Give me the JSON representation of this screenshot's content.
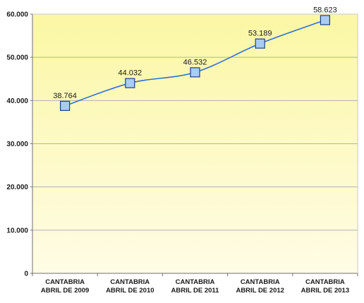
{
  "chart_data": {
    "type": "line",
    "categories": [
      [
        "CANTABRIA",
        "ABRIL DE 2009"
      ],
      [
        "CANTABRIA",
        "ABRIL DE 2010"
      ],
      [
        "CANTABRIA",
        "ABRIL DE 2011"
      ],
      [
        "CANTABRIA",
        "ABRIL DE 2012"
      ],
      [
        "CANTABRIA",
        "ABRIL DE 2013"
      ]
    ],
    "series": [
      {
        "values": [
          38764,
          44032,
          46532,
          53189,
          58623
        ]
      }
    ],
    "data_labels": [
      "38.764",
      "44.032",
      "46.532",
      "53.189",
      "58.623"
    ],
    "yticks": [
      0,
      10000,
      20000,
      30000,
      40000,
      50000,
      60000
    ],
    "ytick_labels": [
      "0",
      "10.000",
      "20.000",
      "30.000",
      "40.000",
      "50.000",
      "60.000"
    ],
    "ylim": [
      0,
      60000
    ],
    "grid": true,
    "legend": "none",
    "line_smoothed": true,
    "colors": {
      "line": "#2f6fd6",
      "marker_fill": "#a9ccf2",
      "marker_stroke": "#1f3f8a",
      "grid": "#b0b0b0",
      "plot_bg_top": "#fbf7a4",
      "plot_bg_bottom": "#fffce6"
    }
  }
}
